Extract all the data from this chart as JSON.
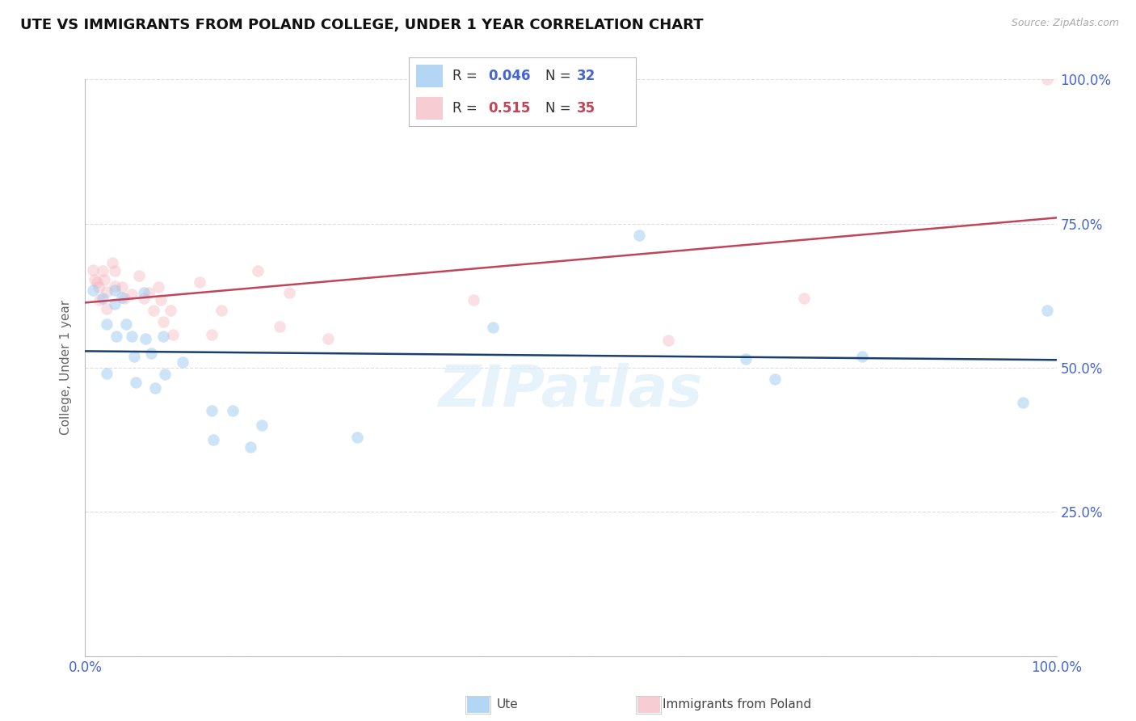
{
  "title": "UTE VS IMMIGRANTS FROM POLAND COLLEGE, UNDER 1 YEAR CORRELATION CHART",
  "source": "Source: ZipAtlas.com",
  "ylabel": "College, Under 1 year",
  "ute_x": [
    0.008,
    0.018,
    0.022,
    0.022,
    0.03,
    0.03,
    0.032,
    0.038,
    0.042,
    0.048,
    0.05,
    0.052,
    0.06,
    0.062,
    0.068,
    0.072,
    0.08,
    0.082,
    0.1,
    0.13,
    0.132,
    0.152,
    0.17,
    0.182,
    0.28,
    0.42,
    0.57,
    0.68,
    0.71,
    0.8,
    0.965,
    0.99
  ],
  "ute_y": [
    0.635,
    0.62,
    0.575,
    0.49,
    0.635,
    0.61,
    0.555,
    0.622,
    0.575,
    0.555,
    0.52,
    0.475,
    0.63,
    0.55,
    0.525,
    0.465,
    0.555,
    0.488,
    0.51,
    0.425,
    0.375,
    0.425,
    0.362,
    0.4,
    0.38,
    0.57,
    0.73,
    0.515,
    0.48,
    0.52,
    0.44,
    0.6
  ],
  "poland_x": [
    0.008,
    0.01,
    0.012,
    0.014,
    0.015,
    0.018,
    0.02,
    0.022,
    0.022,
    0.028,
    0.03,
    0.03,
    0.038,
    0.04,
    0.048,
    0.055,
    0.06,
    0.065,
    0.07,
    0.075,
    0.078,
    0.08,
    0.088,
    0.09,
    0.118,
    0.13,
    0.14,
    0.178,
    0.2,
    0.21,
    0.25,
    0.4,
    0.6,
    0.74,
    0.99
  ],
  "poland_y": [
    0.67,
    0.652,
    0.648,
    0.64,
    0.618,
    0.668,
    0.652,
    0.632,
    0.602,
    0.682,
    0.668,
    0.642,
    0.64,
    0.62,
    0.628,
    0.66,
    0.62,
    0.63,
    0.6,
    0.64,
    0.618,
    0.58,
    0.6,
    0.558,
    0.648,
    0.558,
    0.6,
    0.668,
    0.572,
    0.63,
    0.55,
    0.618,
    0.548,
    0.62,
    1.0
  ],
  "ute_color": "#92c5f0",
  "poland_color": "#f4b8c1",
  "ute_line_color": "#1a3f6f",
  "poland_line_color": "#c0455a",
  "ute_R": "0.046",
  "ute_N": "32",
  "poland_R": "0.515",
  "poland_N": "35",
  "xlim": [
    0.0,
    1.0
  ],
  "ylim": [
    0.0,
    1.0
  ],
  "yticks": [
    0.0,
    0.25,
    0.5,
    0.75,
    1.0
  ],
  "right_yticklabels": [
    "",
    "25.0%",
    "50.0%",
    "75.0%",
    "100.0%"
  ],
  "x_left_label": "0.0%",
  "x_right_label": "100.0%",
  "marker_size": 110,
  "marker_alpha": 0.45,
  "line_width": 1.8,
  "grid_color": "#dddddd",
  "tick_color": "#4466cc",
  "watermark": "ZIPatlas",
  "watermark_color": "#ddeef8",
  "legend_ute_color": "#4466cc",
  "legend_poland_color": "#c0455a"
}
